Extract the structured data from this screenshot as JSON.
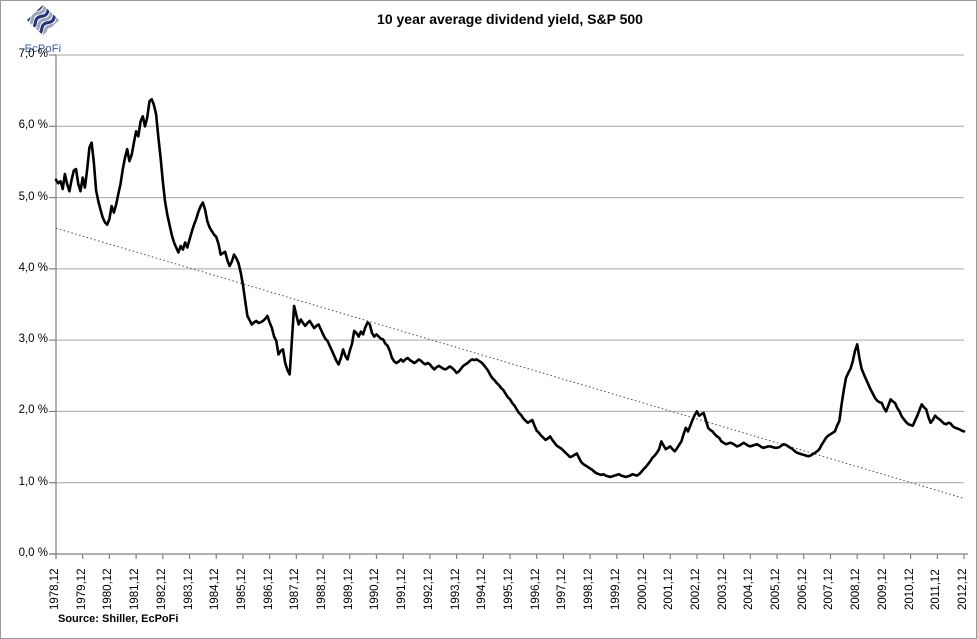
{
  "logo": {
    "icon": "ecpofi-diamond-logo",
    "text": "EcPoFi",
    "colors": {
      "navy": "#26357e",
      "steel": "#9aa6b5",
      "text": "#3a57a5"
    }
  },
  "header": {
    "title": "10 year average dividend yield, S&P 500"
  },
  "footer": {
    "source": "Source: Shiller,  EcPoFi"
  },
  "chart_data": {
    "type": "line",
    "title": "10 year average dividend yield, S&P 500",
    "xlabel": "",
    "ylabel": "",
    "ylim": [
      0,
      7
    ],
    "grid": "horizontal",
    "legend": "none",
    "colors": {
      "line": "#000000",
      "trend": "#4d4d4d",
      "grid": "#a6a6a6",
      "axis": "#808080"
    },
    "y_ticks": [
      {
        "value": 7,
        "label": "7,0 %"
      },
      {
        "value": 6,
        "label": "6,0 %"
      },
      {
        "value": 5,
        "label": "5,0 %"
      },
      {
        "value": 4,
        "label": "4,0 %"
      },
      {
        "value": 3,
        "label": "3,0 %"
      },
      {
        "value": 2,
        "label": "2,0 %"
      },
      {
        "value": 1,
        "label": "1,0 %"
      },
      {
        "value": 0,
        "label": "0,0 %"
      }
    ],
    "x_ticks": [
      "1978,12",
      "1979,12",
      "1980,12",
      "1981,12",
      "1982,12",
      "1983,12",
      "1984,12",
      "1985,12",
      "1986,12",
      "1987,12",
      "1988,12",
      "1989,12",
      "1990,12",
      "1991,12",
      "1992,12",
      "1993,12",
      "1994,12",
      "1995,12",
      "1996,12",
      "1997,12",
      "1998,12",
      "1999,12",
      "2000,12",
      "2001,12",
      "2002,12",
      "2003,12",
      "2004,12",
      "2005,12",
      "2006,12",
      "2007,12",
      "2008,12",
      "2009,12",
      "2010,12",
      "2011,12",
      "2012,12"
    ],
    "series": [
      {
        "name": "10 year average dividend yield",
        "type": "line",
        "color": "#000000",
        "stroke_width": 2.6,
        "x_start": 1978.917,
        "x_step_years": 0.0833333,
        "values": [
          5.25,
          5.2,
          5.23,
          5.12,
          5.33,
          5.19,
          5.09,
          5.25,
          5.38,
          5.4,
          5.19,
          5.09,
          5.28,
          5.14,
          5.4,
          5.7,
          5.77,
          5.5,
          5.1,
          4.95,
          4.83,
          4.72,
          4.65,
          4.62,
          4.7,
          4.88,
          4.79,
          4.9,
          5.05,
          5.19,
          5.4,
          5.56,
          5.68,
          5.51,
          5.6,
          5.77,
          5.93,
          5.86,
          6.07,
          6.14,
          6.0,
          6.12,
          6.35,
          6.38,
          6.3,
          6.17,
          5.84,
          5.56,
          5.23,
          4.95,
          4.76,
          4.62,
          4.48,
          4.37,
          4.3,
          4.23,
          4.32,
          4.27,
          4.37,
          4.3,
          4.41,
          4.52,
          4.62,
          4.7,
          4.8,
          4.88,
          4.93,
          4.83,
          4.67,
          4.58,
          4.53,
          4.48,
          4.45,
          4.35,
          4.2,
          4.22,
          4.24,
          4.12,
          4.04,
          4.1,
          4.2,
          4.15,
          4.08,
          3.95,
          3.78,
          3.55,
          3.34,
          3.28,
          3.22,
          3.25,
          3.27,
          3.24,
          3.25,
          3.27,
          3.3,
          3.34,
          3.25,
          3.17,
          3.05,
          2.99,
          2.8,
          2.85,
          2.87,
          2.68,
          2.58,
          2.52,
          3.0,
          3.48,
          3.35,
          3.22,
          3.29,
          3.24,
          3.2,
          3.24,
          3.27,
          3.22,
          3.17,
          3.2,
          3.22,
          3.15,
          3.08,
          3.02,
          2.99,
          2.92,
          2.85,
          2.78,
          2.71,
          2.66,
          2.75,
          2.87,
          2.78,
          2.73,
          2.85,
          2.95,
          3.13,
          3.1,
          3.05,
          3.12,
          3.08,
          3.18,
          3.25,
          3.22,
          3.1,
          3.05,
          3.08,
          3.05,
          3.02,
          3.01,
          2.95,
          2.92,
          2.85,
          2.75,
          2.7,
          2.68,
          2.7,
          2.73,
          2.7,
          2.73,
          2.75,
          2.72,
          2.7,
          2.68,
          2.7,
          2.73,
          2.71,
          2.68,
          2.66,
          2.68,
          2.66,
          2.62,
          2.59,
          2.62,
          2.64,
          2.62,
          2.6,
          2.59,
          2.61,
          2.63,
          2.61,
          2.58,
          2.54,
          2.56,
          2.6,
          2.64,
          2.66,
          2.68,
          2.71,
          2.73,
          2.72,
          2.73,
          2.71,
          2.69,
          2.66,
          2.62,
          2.58,
          2.52,
          2.47,
          2.44,
          2.4,
          2.37,
          2.33,
          2.3,
          2.25,
          2.2,
          2.17,
          2.12,
          2.08,
          2.03,
          1.98,
          1.95,
          1.9,
          1.87,
          1.84,
          1.86,
          1.88,
          1.8,
          1.73,
          1.7,
          1.66,
          1.63,
          1.6,
          1.62,
          1.65,
          1.6,
          1.56,
          1.52,
          1.5,
          1.48,
          1.45,
          1.42,
          1.39,
          1.36,
          1.37,
          1.39,
          1.41,
          1.35,
          1.29,
          1.26,
          1.24,
          1.22,
          1.2,
          1.18,
          1.15,
          1.13,
          1.12,
          1.11,
          1.12,
          1.1,
          1.09,
          1.08,
          1.09,
          1.1,
          1.11,
          1.12,
          1.1,
          1.09,
          1.08,
          1.09,
          1.1,
          1.12,
          1.11,
          1.1,
          1.12,
          1.15,
          1.19,
          1.22,
          1.26,
          1.3,
          1.35,
          1.38,
          1.42,
          1.47,
          1.58,
          1.52,
          1.47,
          1.49,
          1.51,
          1.47,
          1.44,
          1.48,
          1.53,
          1.58,
          1.68,
          1.77,
          1.72,
          1.8,
          1.88,
          1.95,
          2.0,
          1.94,
          1.96,
          1.98,
          1.88,
          1.77,
          1.74,
          1.72,
          1.68,
          1.65,
          1.63,
          1.58,
          1.56,
          1.54,
          1.55,
          1.56,
          1.55,
          1.53,
          1.51,
          1.52,
          1.54,
          1.56,
          1.54,
          1.52,
          1.51,
          1.52,
          1.53,
          1.54,
          1.52,
          1.5,
          1.49,
          1.5,
          1.51,
          1.51,
          1.5,
          1.49,
          1.49,
          1.5,
          1.52,
          1.54,
          1.53,
          1.51,
          1.49,
          1.47,
          1.44,
          1.42,
          1.41,
          1.4,
          1.39,
          1.38,
          1.37,
          1.38,
          1.4,
          1.42,
          1.44,
          1.47,
          1.53,
          1.58,
          1.63,
          1.66,
          1.68,
          1.7,
          1.72,
          1.8,
          1.87,
          2.1,
          2.3,
          2.47,
          2.54,
          2.6,
          2.7,
          2.85,
          2.94,
          2.75,
          2.6,
          2.52,
          2.45,
          2.38,
          2.31,
          2.25,
          2.19,
          2.15,
          2.13,
          2.12,
          2.05,
          2.0,
          2.08,
          2.17,
          2.14,
          2.12,
          2.05,
          2.0,
          1.93,
          1.89,
          1.85,
          1.82,
          1.81,
          1.8,
          1.87,
          1.94,
          2.02,
          2.1,
          2.06,
          2.03,
          1.92,
          1.84,
          1.88,
          1.94,
          1.91,
          1.89,
          1.86,
          1.83,
          1.82,
          1.84,
          1.83,
          1.79,
          1.77,
          1.76,
          1.75,
          1.73,
          1.72
        ]
      },
      {
        "name": "linear trend",
        "type": "dotted-line",
        "color": "#4d4d4d",
        "stroke_width": 1,
        "points": [
          [
            1978.917,
            4.57
          ],
          [
            2012.917,
            0.78
          ]
        ]
      }
    ]
  }
}
